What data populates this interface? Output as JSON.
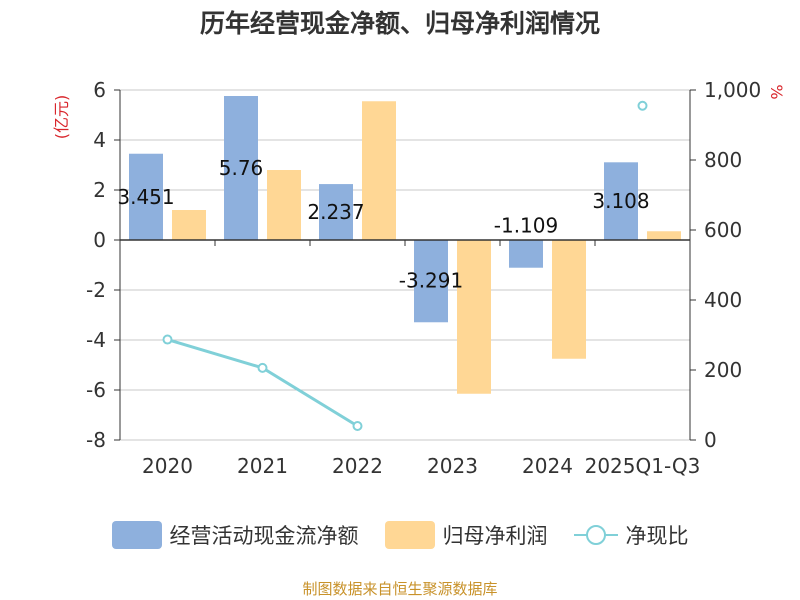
{
  "chart_data": {
    "type": "bar",
    "title": "历年经营现金净额、归母净利润情况",
    "categories": [
      "2020",
      "2021",
      "2022",
      "2023",
      "2024",
      "2025Q1-Q3"
    ],
    "series": [
      {
        "name": "经营活动现金流净额",
        "type": "bar",
        "axis": "left",
        "color": "#8eb0dd",
        "values": [
          3.451,
          5.76,
          2.237,
          -3.291,
          -1.109,
          3.108
        ],
        "labels": [
          "3.451",
          "5.76",
          "2.237",
          "-3.291",
          "-1.109",
          "3.108"
        ]
      },
      {
        "name": "归母净利润",
        "type": "bar",
        "axis": "left",
        "color": "#ffd795",
        "values": [
          1.2,
          2.8,
          5.55,
          -6.15,
          -4.75,
          0.35
        ]
      },
      {
        "name": "净现比",
        "type": "line",
        "axis": "right",
        "color": "#80d0d8",
        "values": [
          287,
          206,
          40,
          null,
          null,
          955
        ]
      }
    ],
    "y_left": {
      "label": "(亿元)",
      "min": -8,
      "max": 6,
      "ticks": [
        -8,
        -6,
        -4,
        -2,
        0,
        2,
        4,
        6
      ]
    },
    "y_right": {
      "label": "%",
      "min": 0,
      "max": 1000,
      "ticks": [
        0,
        200,
        400,
        600,
        800,
        1000
      ],
      "tick_labels": [
        "0",
        "200",
        "400",
        "600",
        "800",
        "1,000"
      ]
    },
    "legend_position": "bottom",
    "grid": true
  },
  "legend": [
    "经营活动现金流净额",
    "归母净利润",
    "净现比"
  ],
  "source_note": "制图数据来自恒生聚源数据库"
}
